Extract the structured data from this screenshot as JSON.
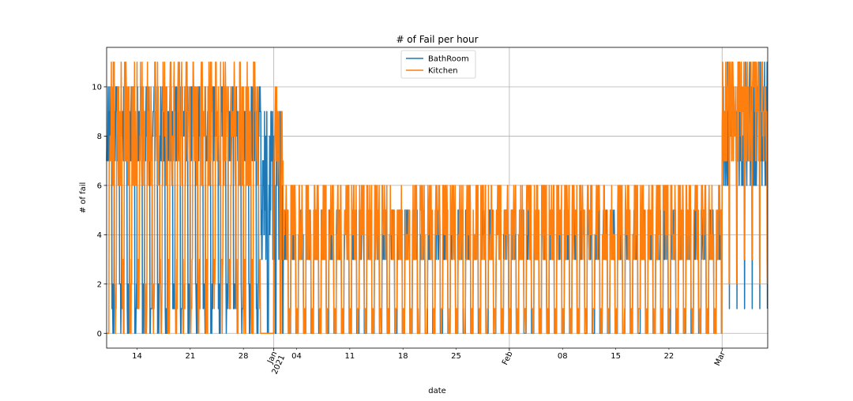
{
  "chart_data": {
    "type": "line",
    "title": "# of Fail per hour",
    "xlabel": "date",
    "ylabel": "# of fail",
    "ylim": [
      -0.6,
      11.6
    ],
    "xlim": [
      "2020-12-10T00:00",
      "2021-03-07T00:00"
    ],
    "yticks": [
      0,
      2,
      4,
      6,
      8,
      10
    ],
    "xticks_minor": [
      {
        "date": "2020-12-14",
        "label": "14"
      },
      {
        "date": "2020-12-21",
        "label": "21"
      },
      {
        "date": "2020-12-28",
        "label": "28"
      },
      {
        "date": "2021-01-04",
        "label": "04"
      },
      {
        "date": "2021-01-11",
        "label": "11"
      },
      {
        "date": "2021-01-18",
        "label": "18"
      },
      {
        "date": "2021-01-25",
        "label": "25"
      },
      {
        "date": "2021-02-08",
        "label": "08"
      },
      {
        "date": "2021-02-15",
        "label": "15"
      },
      {
        "date": "2021-02-22",
        "label": "22"
      }
    ],
    "xticks_major": [
      {
        "date": "2021-01-01",
        "label": "Jan",
        "label2": "2021"
      },
      {
        "date": "2021-02-01",
        "label": "Feb",
        "label2": ""
      },
      {
        "date": "2021-03-01",
        "label": "Mar",
        "label2": ""
      }
    ],
    "grid": true,
    "legend": "top-center",
    "series": [
      {
        "name": "BathRoom",
        "color": "#1f77b4",
        "segments": [
          {
            "start": "2020-12-10T00:00",
            "end": "2020-12-30T08:00",
            "cycle": 24,
            "seed": 11,
            "high": [
              7,
              10
            ],
            "low": [
              0,
              2
            ],
            "lowFrac": 0.3
          },
          {
            "start": "2020-12-30T08:00",
            "end": "2021-01-02T06:00",
            "cycle": 24,
            "seed": 12,
            "high": [
              3,
              9
            ],
            "low": [
              0,
              0
            ],
            "lowFrac": 0.2
          },
          {
            "start": "2021-01-02T06:00",
            "end": "2021-03-01T00:00",
            "cycle": 24,
            "seed": 13,
            "high": [
              3,
              5
            ],
            "low": [
              0,
              0
            ],
            "lowFrac": 0.35
          },
          {
            "start": "2021-03-01T00:00",
            "end": "2021-03-07T00:00",
            "cycle": 24,
            "seed": 14,
            "high": [
              6,
              11
            ],
            "low": [
              1,
              1
            ],
            "lowFrac": 0.08
          }
        ]
      },
      {
        "name": "Kitchen",
        "color": "#ff7f0e",
        "segments": [
          {
            "start": "2020-12-10T00:00",
            "end": "2020-12-10T08:00",
            "cycle": 8,
            "seed": 20,
            "high": [
              0,
              0
            ],
            "low": [
              0,
              0
            ],
            "lowFrac": 0
          },
          {
            "start": "2020-12-10T08:00",
            "end": "2020-12-30T08:00",
            "cycle": 24,
            "seed": 21,
            "high": [
              6,
              11
            ],
            "low": [
              0,
              3
            ],
            "lowFrac": 0.3
          },
          {
            "start": "2020-12-30T08:00",
            "end": "2021-01-01T00:00",
            "cycle": 24,
            "seed": 22,
            "high": [
              0,
              0
            ],
            "low": [
              0,
              0
            ],
            "lowFrac": 0
          },
          {
            "start": "2021-01-01T00:00",
            "end": "2021-01-02T06:00",
            "cycle": 24,
            "seed": 23,
            "high": [
              6,
              10
            ],
            "low": [
              0,
              0
            ],
            "lowFrac": 0.2
          },
          {
            "start": "2021-01-02T06:00",
            "end": "2021-03-01T00:00",
            "cycle": 24,
            "seed": 24,
            "high": [
              3,
              6
            ],
            "low": [
              0,
              1
            ],
            "lowFrac": 0.35
          },
          {
            "start": "2021-03-01T00:00",
            "end": "2021-03-07T00:00",
            "cycle": 24,
            "seed": 25,
            "high": [
              7,
              11
            ],
            "low": [
              2,
              3
            ],
            "lowFrac": 0.1
          }
        ]
      }
    ]
  }
}
